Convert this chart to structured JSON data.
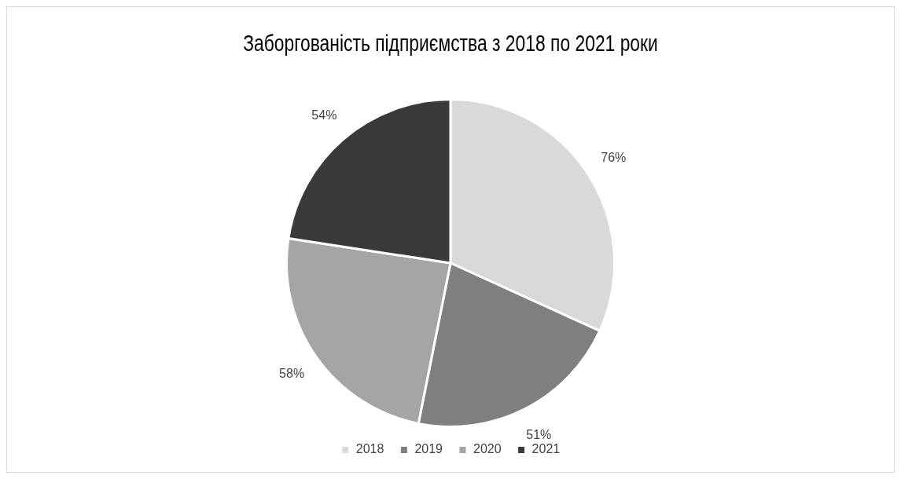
{
  "chart_data": {
    "type": "pie",
    "title": "Заборгованість підприємства з 2018 по 2021 роки",
    "categories": [
      "2018",
      "2019",
      "2020",
      "2021"
    ],
    "values": [
      76,
      51,
      58,
      54
    ],
    "value_labels": [
      "76%",
      "51%",
      "58%",
      "54%"
    ],
    "colors": [
      "#d9d9d9",
      "#7f7f7f",
      "#a5a5a5",
      "#3a3a3a"
    ],
    "legend": "bottom"
  }
}
